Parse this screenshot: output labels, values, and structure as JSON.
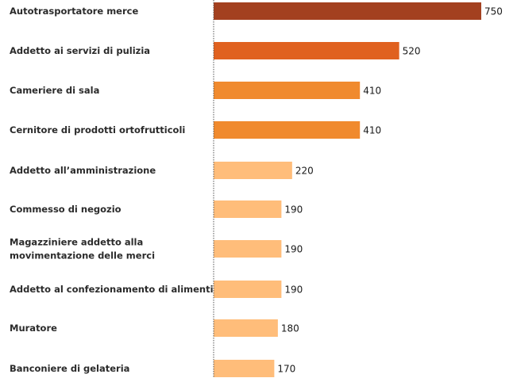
{
  "chart_data": {
    "type": "bar",
    "orientation": "horizontal",
    "categories": [
      [
        "Autotrasportatore merce"
      ],
      [
        "Addetto ai servizi di pulizia"
      ],
      [
        "Cameriere di sala"
      ],
      [
        "Cernitore di prodotti ortofrutticoli"
      ],
      [
        "Addetto all’amministrazione"
      ],
      [
        "Commesso di negozio"
      ],
      [
        "Magazziniere addetto alla",
        "movimentazione delle merci"
      ],
      [
        "Addetto al confezionamento di alimenti"
      ],
      [
        "Muratore"
      ],
      [
        "Banconiere di gelateria"
      ]
    ],
    "values": [
      750,
      520,
      410,
      410,
      220,
      190,
      190,
      190,
      180,
      170
    ],
    "colors": [
      "#a3401f",
      "#e0611f",
      "#f08a2e",
      "#f08a2e",
      "#ffbd7a",
      "#ffbd7a",
      "#ffbd7a",
      "#ffbd7a",
      "#ffbd7a",
      "#ffbd7a"
    ],
    "axis_line_color": "#555555",
    "xlim": [
      0,
      800
    ],
    "grid": false,
    "legend": "none",
    "title": "",
    "xlabel": "",
    "ylabel": ""
  }
}
